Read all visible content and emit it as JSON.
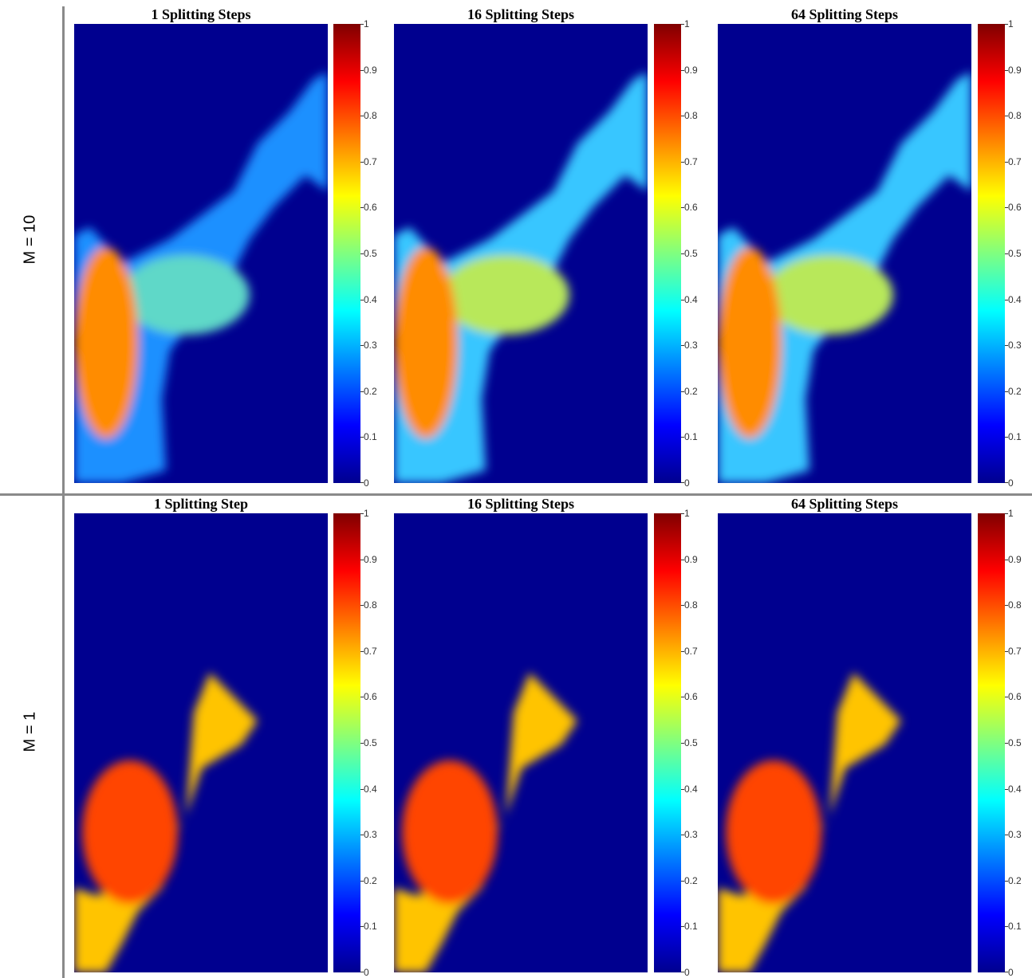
{
  "rows": [
    {
      "label": "M = 10",
      "panels": [
        {
          "title": "1 Splitting Steps"
        },
        {
          "title": "16 Splitting Steps"
        },
        {
          "title": "64 Splitting Steps"
        }
      ]
    },
    {
      "label": "M = 1",
      "panels": [
        {
          "title": "1 Splitting Step"
        },
        {
          "title": "16 Splitting Steps"
        },
        {
          "title": "64 Splitting Steps"
        }
      ]
    }
  ],
  "colorbar": {
    "ticks": [
      "0",
      "0.1",
      "0.2",
      "0.3",
      "0.4",
      "0.5",
      "0.6",
      "0.7",
      "0.8",
      "0.9",
      "1"
    ],
    "colormap": "jet",
    "range": [
      0,
      1
    ]
  },
  "chart_data": {
    "type": "heatmap",
    "grid": [
      2,
      3
    ],
    "row_labels": [
      "M = 10",
      "M = 1"
    ],
    "titles": [
      [
        "1 Splitting Steps",
        "16 Splitting Steps",
        "64 Splitting Steps"
      ],
      [
        "1 Splitting Step",
        "16 Splitting Steps",
        "64 Splitting Steps"
      ]
    ],
    "colorbar_range": [
      0,
      1
    ],
    "colorbar_ticks": [
      0,
      0.1,
      0.2,
      0.3,
      0.4,
      0.5,
      0.6,
      0.7,
      0.8,
      0.9,
      1
    ],
    "colormap": "jet",
    "background_value": 0
  }
}
